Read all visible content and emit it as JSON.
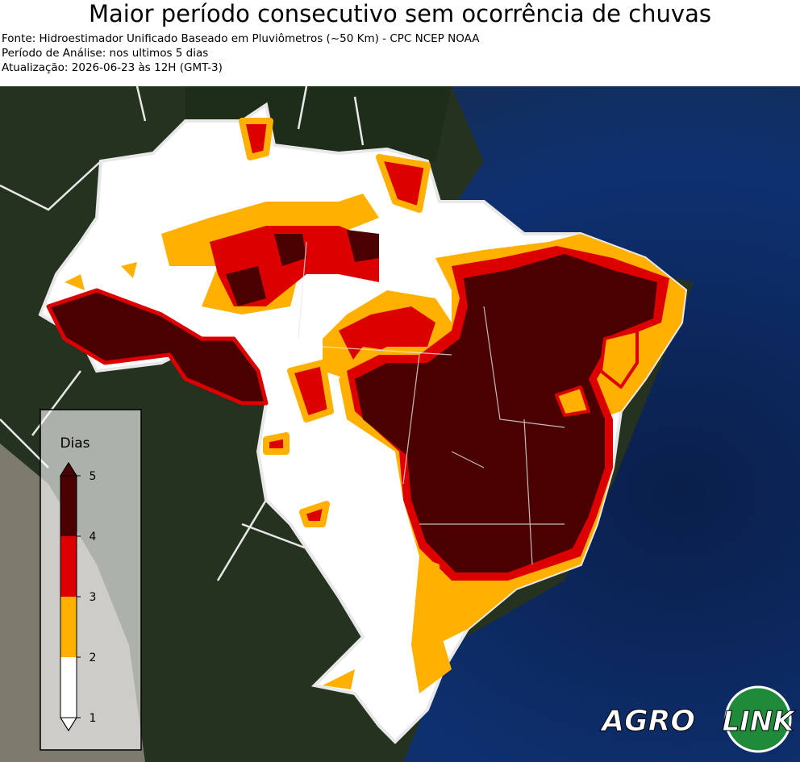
{
  "header": {
    "title": "Maior período consecutivo sem ocorrência de chuvas",
    "lines": [
      "Fonte: Hidroestimador Unificado Baseado em Pluviômetros (~50 Km) - CPC NCEP NOAA",
      "Período de Análise: nos ultimos 5 dias",
      "Atualização: 2026-06-23 às 12H (GMT-3)"
    ]
  },
  "legend": {
    "title": "Dias",
    "range": [
      1,
      5
    ],
    "ticks": [
      1,
      2,
      3,
      4,
      5
    ],
    "colors": [
      "#ffffff",
      "#ffb000",
      "#dd0000",
      "#4a0000"
    ]
  },
  "logo": {
    "left": "AGRO",
    "right": "LINK"
  }
}
